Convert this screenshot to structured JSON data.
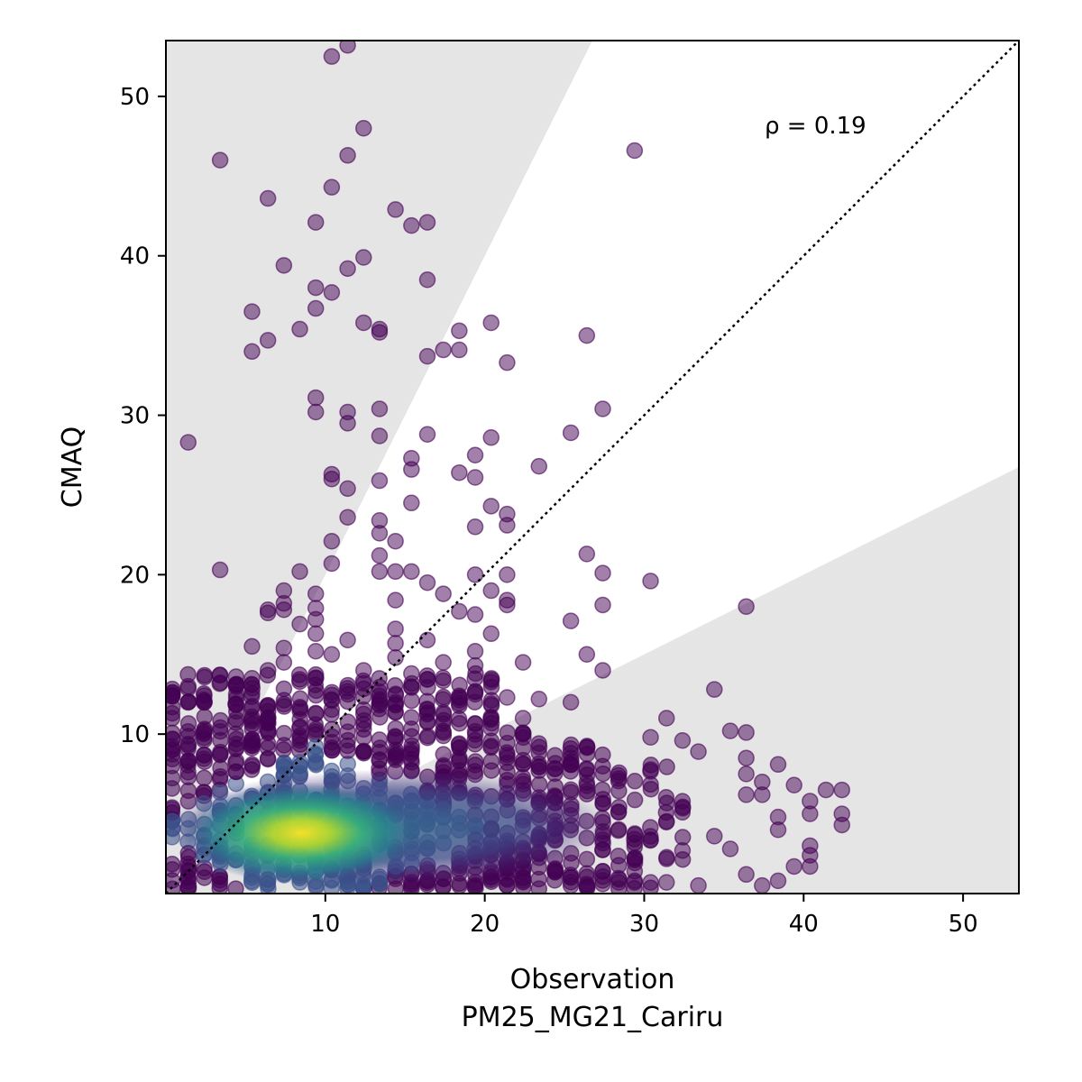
{
  "chart_data": {
    "type": "scatter",
    "xlabel": "Observation",
    "xlabel_line2": "PM25_MG21_Cariru",
    "ylabel": "CMAQ",
    "xlim": [
      0,
      53.5
    ],
    "ylim": [
      0,
      53.5
    ],
    "x_ticks": [
      "10",
      "20",
      "30",
      "40",
      "50"
    ],
    "y_ticks": [
      "10",
      "20",
      "30",
      "40",
      "50"
    ],
    "annotation": "ρ = 0.19",
    "reference_line": "1:1 dotted",
    "shaded_regions": "factor-of-2 bands outside y = 2x and y = 0.5x",
    "colors": {
      "shade": "#e5e5e5",
      "low_density": "#440154",
      "mid_density": "#21918c",
      "high_density": "#fde725"
    },
    "points": [
      [
        1,
        28.3
      ],
      [
        3,
        46
      ],
      [
        3,
        20.3
      ],
      [
        5,
        36.5
      ],
      [
        5,
        34
      ],
      [
        6,
        43.6
      ],
      [
        6,
        34.7
      ],
      [
        7,
        39.4
      ],
      [
        8,
        35.4
      ],
      [
        8,
        20.2
      ],
      [
        9,
        42.1
      ],
      [
        9,
        38
      ],
      [
        9,
        36.7
      ],
      [
        9,
        31.1
      ],
      [
        9,
        30.2
      ],
      [
        10,
        52.5
      ],
      [
        10,
        44.3
      ],
      [
        10,
        37.7
      ],
      [
        10,
        26.3
      ],
      [
        10,
        26
      ],
      [
        10,
        22.1
      ],
      [
        10,
        20.7
      ],
      [
        11,
        53.2
      ],
      [
        11,
        46.3
      ],
      [
        11,
        39.2
      ],
      [
        11,
        30.2
      ],
      [
        11,
        29.5
      ],
      [
        11,
        25.4
      ],
      [
        11,
        23.6
      ],
      [
        12,
        48
      ],
      [
        12,
        39.9
      ],
      [
        12,
        35.8
      ],
      [
        13,
        35.4
      ],
      [
        13,
        35.2
      ],
      [
        13,
        30.4
      ],
      [
        13,
        28.7
      ],
      [
        13,
        25.9
      ],
      [
        13,
        23.4
      ],
      [
        13,
        22.6
      ],
      [
        13,
        21.2
      ],
      [
        13,
        20.2
      ],
      [
        14,
        42.9
      ],
      [
        14,
        22.1
      ],
      [
        14,
        20.2
      ],
      [
        15,
        41.9
      ],
      [
        15,
        27.3
      ],
      [
        15,
        26.6
      ],
      [
        15,
        24.5
      ],
      [
        15,
        20.2
      ],
      [
        16,
        42.1
      ],
      [
        16,
        38.5
      ],
      [
        16,
        33.7
      ],
      [
        16,
        28.8
      ],
      [
        16,
        19.5
      ],
      [
        17,
        34.1
      ],
      [
        17,
        18.8
      ],
      [
        18,
        35.3
      ],
      [
        18,
        34.1
      ],
      [
        18,
        26.4
      ],
      [
        18,
        17.7
      ],
      [
        19,
        27.5
      ],
      [
        19,
        26.1
      ],
      [
        19,
        23
      ],
      [
        19,
        20
      ],
      [
        19,
        17.5
      ],
      [
        20,
        35.8
      ],
      [
        20,
        28.6
      ],
      [
        20,
        24.3
      ],
      [
        20,
        19
      ],
      [
        20,
        16.3
      ],
      [
        21,
        33.3
      ],
      [
        21,
        23.8
      ],
      [
        21,
        23.1
      ],
      [
        21,
        20
      ],
      [
        21,
        18.4
      ],
      [
        21,
        18.1
      ],
      [
        23,
        26.8
      ],
      [
        25,
        28.9
      ],
      [
        25,
        17.1
      ],
      [
        26,
        35
      ],
      [
        26,
        21.3
      ],
      [
        27,
        30.4
      ],
      [
        27,
        20.1
      ],
      [
        27,
        18.1
      ],
      [
        29,
        46.6
      ],
      [
        30,
        19.6
      ],
      [
        36,
        18
      ],
      [
        1,
        13
      ],
      [
        4,
        13.6
      ],
      [
        5,
        15.5
      ],
      [
        5,
        13.5
      ],
      [
        6,
        17.8
      ],
      [
        6,
        17.6
      ],
      [
        6,
        14
      ],
      [
        7,
        19
      ],
      [
        7,
        18.2
      ],
      [
        7,
        17.8
      ],
      [
        7,
        15.4
      ],
      [
        7,
        14.5
      ],
      [
        8,
        16.9
      ],
      [
        9,
        18.8
      ],
      [
        9,
        17.9
      ],
      [
        9,
        17.2
      ],
      [
        9,
        16.3
      ],
      [
        9,
        15.2
      ],
      [
        10,
        15
      ],
      [
        11,
        15.9
      ],
      [
        12,
        14
      ],
      [
        14,
        16.6
      ],
      [
        14,
        15.7
      ],
      [
        14,
        14.8
      ],
      [
        14,
        18.4
      ],
      [
        15,
        13.8
      ],
      [
        16,
        15.9
      ],
      [
        17,
        14.5
      ],
      [
        19,
        14.3
      ],
      [
        19,
        15.2
      ],
      [
        22,
        14.5
      ],
      [
        25,
        12
      ],
      [
        26,
        15
      ],
      [
        27,
        14
      ],
      [
        34,
        12.8
      ],
      [
        35,
        10.2
      ],
      [
        36,
        10.1
      ],
      [
        36,
        8.5
      ],
      [
        36,
        7.5
      ],
      [
        36,
        6.2
      ],
      [
        37,
        7
      ],
      [
        37,
        6.2
      ],
      [
        37,
        0.5
      ],
      [
        38,
        8.1
      ],
      [
        38,
        4.8
      ],
      [
        38,
        4
      ],
      [
        38,
        0.8
      ],
      [
        39,
        6.8
      ],
      [
        39,
        1.7
      ],
      [
        40,
        5.8
      ],
      [
        40,
        5
      ],
      [
        40,
        3
      ],
      [
        40,
        2.4
      ],
      [
        40,
        1.7
      ],
      [
        41,
        6.5
      ],
      [
        42,
        6.5
      ],
      [
        42,
        5
      ],
      [
        42,
        4.3
      ],
      [
        36,
        1.2
      ],
      [
        35,
        2.8
      ],
      [
        34,
        3.6
      ],
      [
        33,
        8.9
      ],
      [
        33,
        0.5
      ],
      [
        32,
        9.6
      ],
      [
        32,
        2.7
      ],
      [
        31,
        11
      ],
      [
        31,
        0.7
      ],
      [
        30,
        9.8
      ],
      [
        30,
        0.7
      ],
      [
        29,
        1.4
      ],
      [
        29,
        0.8
      ],
      [
        28,
        0.7
      ],
      [
        27,
        1.4
      ],
      [
        27,
        0.6
      ],
      [
        25,
        0.5
      ],
      [
        24,
        1.5
      ],
      [
        22,
        1
      ],
      [
        23,
        12.2
      ],
      [
        22,
        11
      ],
      [
        21,
        12.3
      ],
      [
        20,
        11.9
      ],
      [
        19,
        12.5
      ],
      [
        18,
        12.3
      ]
    ]
  }
}
